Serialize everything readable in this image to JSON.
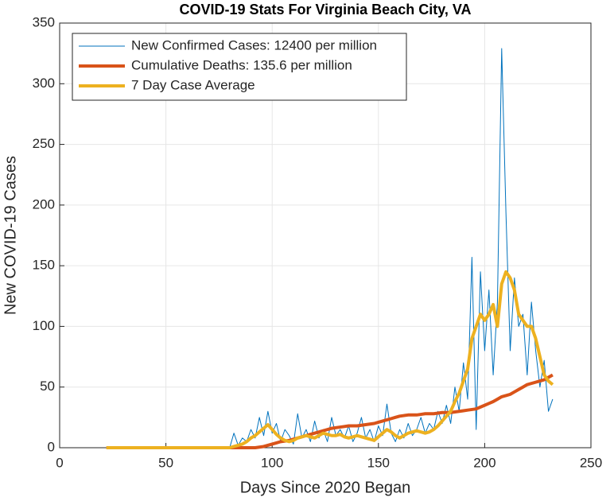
{
  "chart_data": {
    "type": "line",
    "title": "COVID-19 Stats For Virginia Beach City, VA",
    "xlabel": "Days Since 2020 Began",
    "ylabel": "New COVID-19 Cases",
    "x": [
      22,
      30,
      40,
      50,
      60,
      70,
      78,
      80,
      82,
      84,
      86,
      88,
      90,
      92,
      94,
      96,
      98,
      100,
      102,
      104,
      106,
      108,
      110,
      112,
      114,
      116,
      118,
      120,
      122,
      124,
      126,
      128,
      130,
      132,
      134,
      136,
      138,
      140,
      142,
      144,
      146,
      148,
      150,
      152,
      154,
      156,
      158,
      160,
      162,
      164,
      166,
      168,
      170,
      172,
      174,
      176,
      178,
      180,
      182,
      184,
      186,
      188,
      190,
      192,
      194,
      196,
      198,
      200,
      202,
      204,
      206,
      208,
      210,
      212,
      214,
      216,
      218,
      220,
      222,
      224,
      226,
      228,
      230,
      232
    ],
    "series": [
      {
        "name": "New Confirmed Cases: 12400 per million",
        "color": "#0072BD",
        "width": 1,
        "values": [
          0,
          0,
          0,
          0,
          0,
          0,
          0,
          0,
          12,
          2,
          8,
          5,
          15,
          8,
          25,
          10,
          30,
          12,
          20,
          5,
          15,
          10,
          3,
          28,
          8,
          15,
          5,
          22,
          8,
          15,
          5,
          25,
          10,
          15,
          8,
          18,
          5,
          12,
          25,
          8,
          15,
          5,
          18,
          10,
          36,
          12,
          5,
          15,
          8,
          20,
          10,
          15,
          25,
          12,
          20,
          15,
          30,
          20,
          35,
          20,
          50,
          30,
          70,
          40,
          157,
          15,
          145,
          80,
          130,
          60,
          120,
          329,
          194,
          80,
          140,
          100,
          110,
          60,
          120,
          80,
          50,
          72,
          30,
          40
        ]
      },
      {
        "name": "Cumulative Deaths: 135.6 per million",
        "color": "#D95319",
        "width": 4,
        "values": [
          0,
          0,
          0,
          0,
          0,
          0,
          0,
          0,
          0,
          0,
          0,
          0,
          0,
          0,
          0.5,
          1,
          2,
          3,
          4,
          5,
          5.5,
          6,
          7,
          8,
          9,
          10,
          11,
          12,
          13,
          14,
          15,
          16,
          16.5,
          17,
          17.5,
          18,
          18,
          18,
          18.5,
          19,
          19.5,
          20,
          21,
          22,
          23,
          24,
          25,
          26,
          26.5,
          27,
          27,
          27,
          27.5,
          28,
          28,
          28,
          28.5,
          29,
          29,
          29,
          29.5,
          30,
          30.5,
          31,
          31.5,
          32,
          33.5,
          35,
          36.5,
          38,
          40,
          42,
          43,
          44,
          46,
          48,
          50,
          52,
          53,
          54,
          55,
          56,
          58,
          60
        ]
      },
      {
        "name": "7 Day Case Average",
        "color": "#EDB120",
        "width": 4,
        "values": [
          0,
          0,
          0,
          0,
          0,
          0,
          0,
          0,
          1,
          2,
          3,
          5,
          8,
          10,
          13,
          16,
          19,
          15,
          11,
          8,
          6,
          5,
          6,
          8,
          9,
          10,
          9,
          8,
          10,
          12,
          11,
          10,
          10,
          11,
          9,
          8,
          9,
          10,
          9,
          8,
          7,
          6,
          9,
          12,
          15,
          13,
          10,
          8,
          10,
          12,
          13,
          14,
          13,
          12,
          13,
          15,
          18,
          22,
          26,
          30,
          38,
          45,
          55,
          65,
          90,
          100,
          110,
          105,
          110,
          118,
          100,
          135,
          145,
          140,
          130,
          110,
          105,
          100,
          100,
          90,
          75,
          60,
          55,
          52
        ]
      }
    ],
    "xlim": [
      0,
      250
    ],
    "xticks": [
      0,
      50,
      100,
      150,
      200,
      250
    ],
    "ylim": [
      0,
      350
    ],
    "yticks": [
      0,
      50,
      100,
      150,
      200,
      250,
      300,
      350
    ],
    "grid": true,
    "legend": "upper-left"
  }
}
